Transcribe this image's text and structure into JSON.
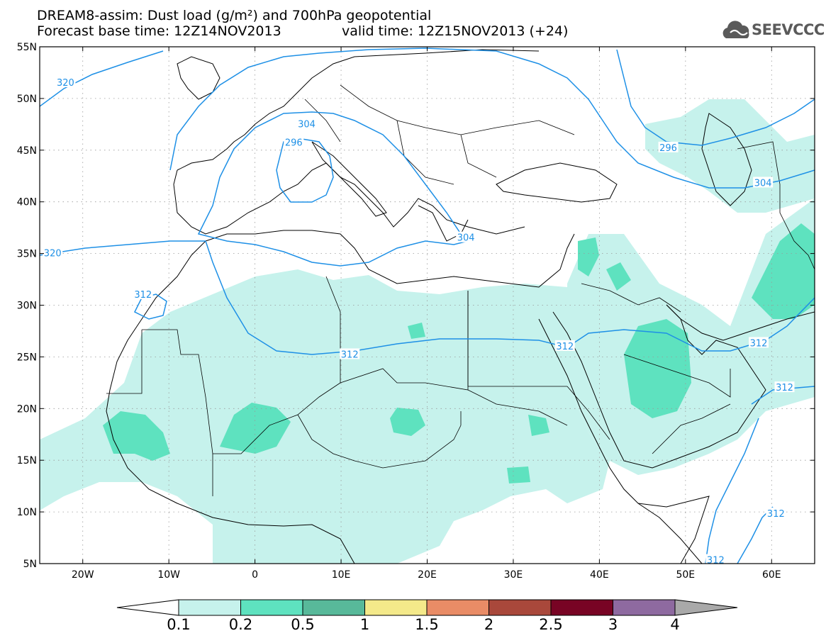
{
  "header": {
    "line1": "DREAM8-assim: Dust load (g/m²) and 700hPa geopotential",
    "line2a": "Forecast base time: 12Z14NOV2013",
    "line2b": "valid time: 12Z15NOV2013 (+24)"
  },
  "logo": {
    "text": "SEEVCCC",
    "icon": "cloud-icon"
  },
  "axes": {
    "lat_labels": [
      "55N",
      "50N",
      "45N",
      "40N",
      "35N",
      "30N",
      "25N",
      "20N",
      "15N",
      "10N",
      "5N"
    ],
    "lat_values": [
      55,
      50,
      45,
      40,
      35,
      30,
      25,
      20,
      15,
      10,
      5
    ],
    "lon_labels": [
      "20W",
      "10W",
      "0",
      "10E",
      "20E",
      "30E",
      "40E",
      "50E",
      "60E"
    ],
    "lon_values": [
      -20,
      -10,
      0,
      10,
      20,
      30,
      40,
      50,
      60
    ],
    "lon_range": [
      -25,
      65
    ],
    "lat_range": [
      5,
      55
    ],
    "grid": "dotted"
  },
  "contours": {
    "color": "#1e90e6",
    "labels": [
      {
        "text": "320",
        "lon": -22,
        "lat": 51.5
      },
      {
        "text": "320",
        "lon": -23.5,
        "lat": 35
      },
      {
        "text": "312",
        "lon": -13,
        "lat": 31
      },
      {
        "text": "304",
        "lon": 6,
        "lat": 47.5
      },
      {
        "text": "296",
        "lon": 4.5,
        "lat": 45.7
      },
      {
        "text": "304",
        "lon": 24.5,
        "lat": 36.5
      },
      {
        "text": "312",
        "lon": 11,
        "lat": 25.2
      },
      {
        "text": "312",
        "lon": 36,
        "lat": 26
      },
      {
        "text": "296",
        "lon": 48,
        "lat": 45.2
      },
      {
        "text": "304",
        "lon": 59,
        "lat": 41.8
      },
      {
        "text": "312",
        "lon": 58.5,
        "lat": 26.3
      },
      {
        "text": "312",
        "lon": 61.5,
        "lat": 22
      },
      {
        "text": "312",
        "lon": 60.5,
        "lat": 9.8
      },
      {
        "text": "312",
        "lon": 53.5,
        "lat": 5.3
      }
    ]
  },
  "legend": {
    "labels": [
      "0.1",
      "0.2",
      "0.5",
      "1",
      "1.5",
      "2",
      "2.5",
      "3",
      "4"
    ],
    "colors": [
      "#c6f2ec",
      "#5ee2bf",
      "#58b99a",
      "#f4e98a",
      "#e98c66",
      "#a9483b",
      "#780424",
      "#8e6aa0"
    ],
    "left_arrow_color": "#ffffff",
    "right_arrow_color": "#a9a9a9"
  },
  "colors": {
    "land_border": "#000000",
    "background": "#ffffff"
  }
}
